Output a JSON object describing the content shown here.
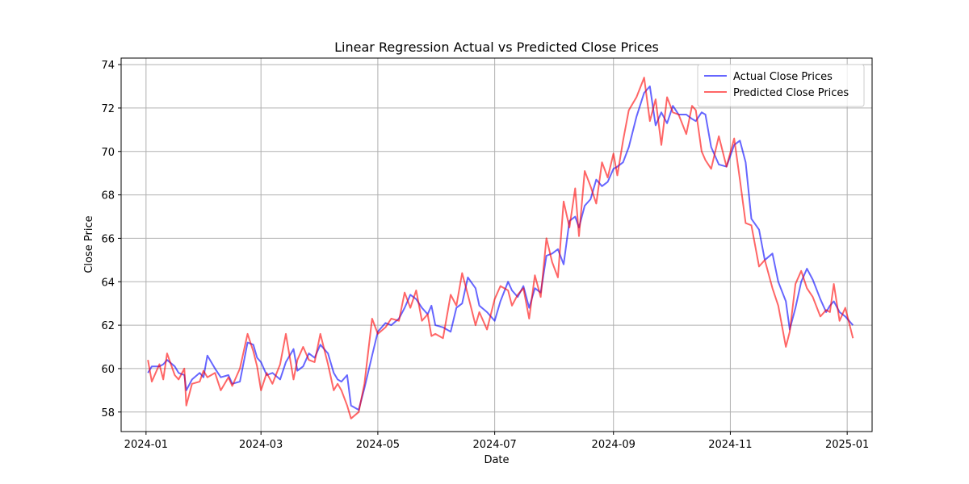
{
  "chart_data": {
    "type": "line",
    "title": "Linear Regression Actual vs Predicted Close Prices",
    "xlabel": "Date",
    "ylabel": "Close Price",
    "x_ticks": [
      "2024-01",
      "2024-03",
      "2024-05",
      "2024-07",
      "2024-09",
      "2024-11",
      "2025-01"
    ],
    "y_ticks": [
      58,
      60,
      62,
      64,
      66,
      68,
      70,
      72,
      74
    ],
    "xlim": [
      "2023-12-19",
      "2025-01-14"
    ],
    "ylim": [
      57.1,
      74.3
    ],
    "grid": true,
    "legend_position": "top-right",
    "series": [
      {
        "name": "Actual Close Prices",
        "color": "#0000ff",
        "points": [
          [
            "2024-01-02",
            59.8
          ],
          [
            "2024-01-04",
            60.1
          ],
          [
            "2024-01-08",
            60.1
          ],
          [
            "2024-01-10",
            60.2
          ],
          [
            "2024-01-12",
            60.4
          ],
          [
            "2024-01-16",
            60.1
          ],
          [
            "2024-01-18",
            59.8
          ],
          [
            "2024-01-21",
            59.7
          ],
          [
            "2024-01-22",
            59.0
          ],
          [
            "2024-01-25",
            59.5
          ],
          [
            "2024-01-29",
            59.8
          ],
          [
            "2024-01-31",
            59.6
          ],
          [
            "2024-02-02",
            60.6
          ],
          [
            "2024-02-06",
            60.0
          ],
          [
            "2024-02-09",
            59.6
          ],
          [
            "2024-02-13",
            59.7
          ],
          [
            "2024-02-15",
            59.3
          ],
          [
            "2024-02-19",
            59.4
          ],
          [
            "2024-02-23",
            61.2
          ],
          [
            "2024-02-26",
            61.1
          ],
          [
            "2024-02-28",
            60.5
          ],
          [
            "2024-03-01",
            60.3
          ],
          [
            "2024-03-04",
            59.7
          ],
          [
            "2024-03-07",
            59.8
          ],
          [
            "2024-03-11",
            59.5
          ],
          [
            "2024-03-14",
            60.3
          ],
          [
            "2024-03-18",
            60.9
          ],
          [
            "2024-03-20",
            59.9
          ],
          [
            "2024-03-23",
            60.1
          ],
          [
            "2024-03-26",
            60.7
          ],
          [
            "2024-03-29",
            60.5
          ],
          [
            "2024-04-01",
            61.1
          ],
          [
            "2024-04-05",
            60.7
          ],
          [
            "2024-04-08",
            59.8
          ],
          [
            "2024-04-10",
            59.5
          ],
          [
            "2024-04-12",
            59.4
          ],
          [
            "2024-04-15",
            59.7
          ],
          [
            "2024-04-17",
            58.3
          ],
          [
            "2024-04-21",
            58.1
          ],
          [
            "2024-04-24",
            59.1
          ],
          [
            "2024-04-28",
            60.6
          ],
          [
            "2024-05-01",
            61.7
          ],
          [
            "2024-05-05",
            62.1
          ],
          [
            "2024-05-08",
            62.0
          ],
          [
            "2024-05-12",
            62.3
          ],
          [
            "2024-05-15",
            62.8
          ],
          [
            "2024-05-18",
            63.4
          ],
          [
            "2024-05-21",
            63.2
          ],
          [
            "2024-05-24",
            62.8
          ],
          [
            "2024-05-27",
            62.5
          ],
          [
            "2024-05-29",
            62.9
          ],
          [
            "2024-05-31",
            62.0
          ],
          [
            "2024-06-04",
            61.9
          ],
          [
            "2024-06-08",
            61.7
          ],
          [
            "2024-06-11",
            62.8
          ],
          [
            "2024-06-14",
            63.0
          ],
          [
            "2024-06-17",
            64.2
          ],
          [
            "2024-06-21",
            63.7
          ],
          [
            "2024-06-23",
            62.9
          ],
          [
            "2024-06-27",
            62.6
          ],
          [
            "2024-07-01",
            62.2
          ],
          [
            "2024-07-04",
            63.1
          ],
          [
            "2024-07-08",
            64.0
          ],
          [
            "2024-07-10",
            63.6
          ],
          [
            "2024-07-13",
            63.3
          ],
          [
            "2024-07-16",
            63.8
          ],
          [
            "2024-07-19",
            62.8
          ],
          [
            "2024-07-22",
            63.7
          ],
          [
            "2024-07-25",
            63.5
          ],
          [
            "2024-07-28",
            65.2
          ],
          [
            "2024-07-31",
            65.3
          ],
          [
            "2024-08-03",
            65.5
          ],
          [
            "2024-08-06",
            64.8
          ],
          [
            "2024-08-09",
            66.8
          ],
          [
            "2024-08-12",
            67.0
          ],
          [
            "2024-08-14",
            66.5
          ],
          [
            "2024-08-17",
            67.5
          ],
          [
            "2024-08-20",
            67.8
          ],
          [
            "2024-08-23",
            68.7
          ],
          [
            "2024-08-26",
            68.4
          ],
          [
            "2024-08-29",
            68.6
          ],
          [
            "2024-09-01",
            69.2
          ],
          [
            "2024-09-03",
            69.3
          ],
          [
            "2024-09-06",
            69.5
          ],
          [
            "2024-09-09",
            70.2
          ],
          [
            "2024-09-13",
            71.6
          ],
          [
            "2024-09-17",
            72.7
          ],
          [
            "2024-09-20",
            73.0
          ],
          [
            "2024-09-23",
            71.2
          ],
          [
            "2024-09-26",
            71.8
          ],
          [
            "2024-09-29",
            71.3
          ],
          [
            "2024-10-02",
            72.1
          ],
          [
            "2024-10-05",
            71.7
          ],
          [
            "2024-10-09",
            71.7
          ],
          [
            "2024-10-12",
            71.5
          ],
          [
            "2024-10-14",
            71.4
          ],
          [
            "2024-10-17",
            71.8
          ],
          [
            "2024-10-19",
            71.7
          ],
          [
            "2024-10-22",
            70.2
          ],
          [
            "2024-10-26",
            69.4
          ],
          [
            "2024-10-30",
            69.3
          ],
          [
            "2024-11-03",
            70.3
          ],
          [
            "2024-11-06",
            70.5
          ],
          [
            "2024-11-09",
            69.5
          ],
          [
            "2024-11-12",
            66.9
          ],
          [
            "2024-11-16",
            66.4
          ],
          [
            "2024-11-19",
            65.0
          ],
          [
            "2024-11-23",
            65.3
          ],
          [
            "2024-11-26",
            64.0
          ],
          [
            "2024-11-30",
            63.1
          ],
          [
            "2024-12-02",
            61.8
          ],
          [
            "2024-12-05",
            62.8
          ],
          [
            "2024-12-08",
            64.0
          ],
          [
            "2024-12-11",
            64.6
          ],
          [
            "2024-12-14",
            64.1
          ],
          [
            "2024-12-18",
            63.2
          ],
          [
            "2024-12-21",
            62.6
          ],
          [
            "2024-12-23",
            62.9
          ],
          [
            "2024-12-25",
            63.1
          ],
          [
            "2024-12-28",
            62.6
          ],
          [
            "2024-12-31",
            62.4
          ],
          [
            "2025-01-04",
            62.0
          ]
        ]
      },
      {
        "name": "Predicted Close Prices",
        "color": "#ff0000",
        "points": [
          [
            "2024-01-02",
            60.4
          ],
          [
            "2024-01-04",
            59.4
          ],
          [
            "2024-01-08",
            60.2
          ],
          [
            "2024-01-10",
            59.5
          ],
          [
            "2024-01-12",
            60.7
          ],
          [
            "2024-01-16",
            59.7
          ],
          [
            "2024-01-18",
            59.5
          ],
          [
            "2024-01-21",
            60.0
          ],
          [
            "2024-01-22",
            58.3
          ],
          [
            "2024-01-25",
            59.3
          ],
          [
            "2024-01-29",
            59.4
          ],
          [
            "2024-01-31",
            59.9
          ],
          [
            "2024-02-02",
            59.6
          ],
          [
            "2024-02-06",
            59.8
          ],
          [
            "2024-02-09",
            59.0
          ],
          [
            "2024-02-13",
            59.6
          ],
          [
            "2024-02-15",
            59.2
          ],
          [
            "2024-02-19",
            60.0
          ],
          [
            "2024-02-23",
            61.6
          ],
          [
            "2024-02-26",
            60.8
          ],
          [
            "2024-02-28",
            60.1
          ],
          [
            "2024-03-01",
            59.0
          ],
          [
            "2024-03-04",
            59.8
          ],
          [
            "2024-03-07",
            59.3
          ],
          [
            "2024-03-11",
            60.2
          ],
          [
            "2024-03-14",
            61.6
          ],
          [
            "2024-03-18",
            59.5
          ],
          [
            "2024-03-20",
            60.4
          ],
          [
            "2024-03-23",
            61.0
          ],
          [
            "2024-03-26",
            60.4
          ],
          [
            "2024-03-29",
            60.3
          ],
          [
            "2024-04-01",
            61.6
          ],
          [
            "2024-04-05",
            60.2
          ],
          [
            "2024-04-08",
            59.0
          ],
          [
            "2024-04-10",
            59.3
          ],
          [
            "2024-04-12",
            59.0
          ],
          [
            "2024-04-15",
            58.3
          ],
          [
            "2024-04-17",
            57.7
          ],
          [
            "2024-04-21",
            58.0
          ],
          [
            "2024-04-24",
            59.3
          ],
          [
            "2024-04-28",
            62.3
          ],
          [
            "2024-05-01",
            61.6
          ],
          [
            "2024-05-05",
            61.9
          ],
          [
            "2024-05-08",
            62.3
          ],
          [
            "2024-05-12",
            62.2
          ],
          [
            "2024-05-15",
            63.5
          ],
          [
            "2024-05-18",
            62.8
          ],
          [
            "2024-05-21",
            63.6
          ],
          [
            "2024-05-24",
            62.2
          ],
          [
            "2024-05-27",
            62.5
          ],
          [
            "2024-05-29",
            61.5
          ],
          [
            "2024-05-31",
            61.6
          ],
          [
            "2024-06-04",
            61.4
          ],
          [
            "2024-06-08",
            63.4
          ],
          [
            "2024-06-11",
            62.9
          ],
          [
            "2024-06-14",
            64.4
          ],
          [
            "2024-06-17",
            63.4
          ],
          [
            "2024-06-21",
            62.0
          ],
          [
            "2024-06-23",
            62.6
          ],
          [
            "2024-06-27",
            61.8
          ],
          [
            "2024-07-01",
            63.2
          ],
          [
            "2024-07-04",
            63.8
          ],
          [
            "2024-07-08",
            63.6
          ],
          [
            "2024-07-10",
            62.9
          ],
          [
            "2024-07-13",
            63.4
          ],
          [
            "2024-07-16",
            63.7
          ],
          [
            "2024-07-19",
            62.3
          ],
          [
            "2024-07-22",
            64.3
          ],
          [
            "2024-07-25",
            63.3
          ],
          [
            "2024-07-28",
            66.0
          ],
          [
            "2024-07-31",
            64.9
          ],
          [
            "2024-08-03",
            64.2
          ],
          [
            "2024-08-06",
            67.7
          ],
          [
            "2024-08-09",
            66.5
          ],
          [
            "2024-08-12",
            68.3
          ],
          [
            "2024-08-14",
            66.1
          ],
          [
            "2024-08-17",
            69.1
          ],
          [
            "2024-08-20",
            68.4
          ],
          [
            "2024-08-23",
            67.6
          ],
          [
            "2024-08-26",
            69.5
          ],
          [
            "2024-08-29",
            68.8
          ],
          [
            "2024-09-01",
            69.9
          ],
          [
            "2024-09-03",
            68.9
          ],
          [
            "2024-09-06",
            70.5
          ],
          [
            "2024-09-09",
            71.9
          ],
          [
            "2024-09-13",
            72.5
          ],
          [
            "2024-09-17",
            73.4
          ],
          [
            "2024-09-20",
            71.4
          ],
          [
            "2024-09-23",
            72.4
          ],
          [
            "2024-09-26",
            70.3
          ],
          [
            "2024-09-29",
            72.5
          ],
          [
            "2024-10-02",
            71.8
          ],
          [
            "2024-10-05",
            71.7
          ],
          [
            "2024-10-09",
            70.8
          ],
          [
            "2024-10-12",
            72.1
          ],
          [
            "2024-10-14",
            71.9
          ],
          [
            "2024-10-17",
            70.0
          ],
          [
            "2024-10-19",
            69.6
          ],
          [
            "2024-10-22",
            69.2
          ],
          [
            "2024-10-26",
            70.7
          ],
          [
            "2024-10-30",
            69.3
          ],
          [
            "2024-11-03",
            70.6
          ],
          [
            "2024-11-06",
            68.7
          ],
          [
            "2024-11-09",
            66.7
          ],
          [
            "2024-11-12",
            66.6
          ],
          [
            "2024-11-16",
            64.7
          ],
          [
            "2024-11-19",
            65.0
          ],
          [
            "2024-11-23",
            63.7
          ],
          [
            "2024-11-26",
            62.9
          ],
          [
            "2024-11-30",
            61.0
          ],
          [
            "2024-12-02",
            61.7
          ],
          [
            "2024-12-05",
            63.9
          ],
          [
            "2024-12-08",
            64.5
          ],
          [
            "2024-12-11",
            63.7
          ],
          [
            "2024-12-14",
            63.3
          ],
          [
            "2024-12-18",
            62.4
          ],
          [
            "2024-12-21",
            62.7
          ],
          [
            "2024-12-23",
            62.6
          ],
          [
            "2024-12-25",
            63.9
          ],
          [
            "2024-12-28",
            62.2
          ],
          [
            "2024-12-31",
            62.8
          ],
          [
            "2025-01-04",
            61.4
          ]
        ]
      }
    ]
  }
}
